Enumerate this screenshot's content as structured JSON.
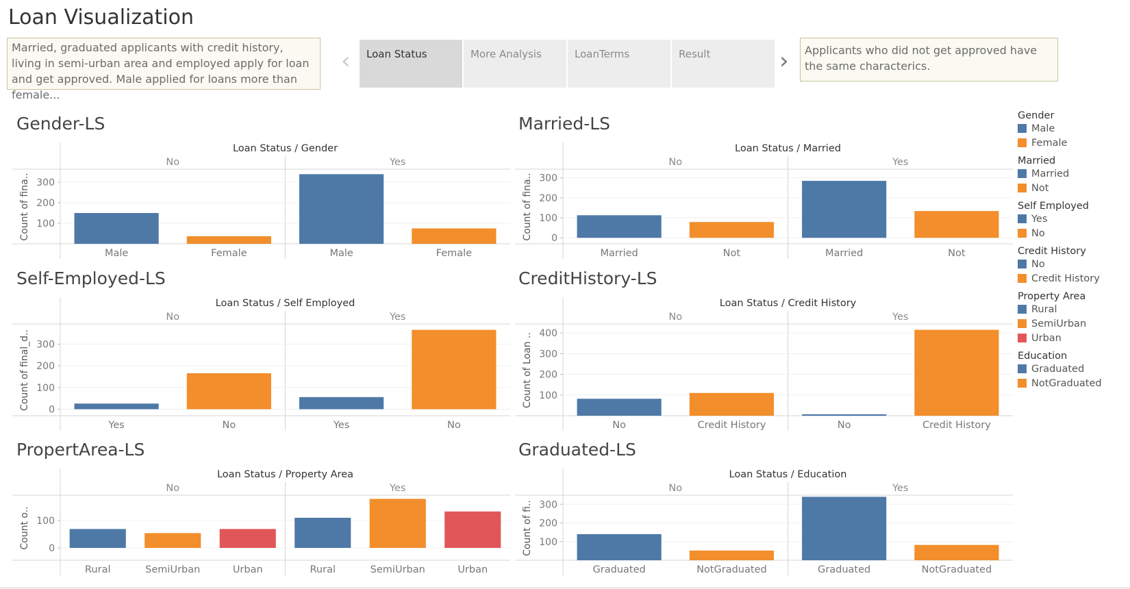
{
  "title": "Loan Visualization",
  "story": {
    "caption_left": "Married, graduated applicants with credit history, living in semi-urban area and employed apply  for loan and get approved. Male applied for loans more than female...",
    "caption_right": "Applicants who did not get approved have the same characterics.",
    "tabs": [
      {
        "label": "Loan Status",
        "active": true
      },
      {
        "label": "More Analysis",
        "active": false
      },
      {
        "label": "LoanTerms",
        "active": false
      },
      {
        "label": "Result",
        "active": false
      }
    ],
    "prev_icon": "chevron-left-icon",
    "next_icon": "chevron-right-icon"
  },
  "colors": {
    "blue": "#4e79a7",
    "orange": "#f28e2b",
    "red": "#e15759"
  },
  "legend": [
    {
      "title": "Gender",
      "items": [
        {
          "label": "Male",
          "color": "#4e79a7"
        },
        {
          "label": "Female",
          "color": "#f28e2b"
        }
      ]
    },
    {
      "title": "Married",
      "items": [
        {
          "label": "Married",
          "color": "#4e79a7"
        },
        {
          "label": "Not",
          "color": "#f28e2b"
        }
      ]
    },
    {
      "title": "Self Employed",
      "items": [
        {
          "label": "Yes",
          "color": "#4e79a7"
        },
        {
          "label": "No",
          "color": "#f28e2b"
        }
      ]
    },
    {
      "title": "Credit History",
      "items": [
        {
          "label": "No",
          "color": "#4e79a7"
        },
        {
          "label": "Credit History",
          "color": "#f28e2b"
        }
      ]
    },
    {
      "title": "Property Area",
      "items": [
        {
          "label": "Rural",
          "color": "#4e79a7"
        },
        {
          "label": "SemiUrban",
          "color": "#f28e2b"
        },
        {
          "label": "Urban",
          "color": "#e15759"
        }
      ]
    },
    {
      "title": "Education",
      "items": [
        {
          "label": "Graduated",
          "color": "#4e79a7"
        },
        {
          "label": "NotGraduated",
          "color": "#f28e2b"
        }
      ]
    }
  ],
  "chart_data": [
    {
      "id": "gender",
      "type": "bar",
      "title": "Gender-LS",
      "header": "Loan Status  /  Gender",
      "ylabel": "Count of fina..",
      "ylim": [
        0,
        360
      ],
      "ticks": [
        100,
        200,
        300
      ],
      "groups": [
        {
          "name": "No",
          "bars": [
            {
              "label": "Male",
              "value": 150,
              "color": "#4e79a7"
            },
            {
              "label": "Female",
              "value": 37,
              "color": "#f28e2b"
            }
          ]
        },
        {
          "name": "Yes",
          "bars": [
            {
              "label": "Male",
              "value": 339,
              "color": "#4e79a7"
            },
            {
              "label": "Female",
              "value": 75,
              "color": "#f28e2b"
            }
          ]
        }
      ]
    },
    {
      "id": "married",
      "type": "bar",
      "title": "Married-LS",
      "header": "Loan Status  /  Married",
      "ylabel": "Count of fina..",
      "ylim": [
        -30,
        340
      ],
      "ticks": [
        0,
        100,
        200,
        300
      ],
      "groups": [
        {
          "name": "No",
          "bars": [
            {
              "label": "Married",
              "value": 113,
              "color": "#4e79a7"
            },
            {
              "label": "Not",
              "value": 79,
              "color": "#f28e2b"
            }
          ]
        },
        {
          "name": "Yes",
          "bars": [
            {
              "label": "Married",
              "value": 285,
              "color": "#4e79a7"
            },
            {
              "label": "Not",
              "value": 134,
              "color": "#f28e2b"
            }
          ]
        }
      ]
    },
    {
      "id": "self-employed",
      "type": "bar",
      "title": "Self-Employed-LS",
      "header": "Loan Status  /  Self Employed",
      "ylabel": "Count of final_d..",
      "ylim": [
        -30,
        390
      ],
      "ticks": [
        0,
        100,
        200,
        300
      ],
      "groups": [
        {
          "name": "No",
          "bars": [
            {
              "label": "Yes",
              "value": 26,
              "color": "#4e79a7"
            },
            {
              "label": "No",
              "value": 166,
              "color": "#f28e2b"
            }
          ]
        },
        {
          "name": "Yes",
          "bars": [
            {
              "label": "Yes",
              "value": 56,
              "color": "#4e79a7"
            },
            {
              "label": "No",
              "value": 366,
              "color": "#f28e2b"
            }
          ]
        }
      ]
    },
    {
      "id": "credit-history",
      "type": "bar",
      "title": "CreditHistory-LS",
      "header": "Loan Status  /  Credit History",
      "ylabel": "Count of Loan ..",
      "ylim": [
        0,
        440
      ],
      "ticks": [
        100,
        200,
        300,
        400
      ],
      "groups": [
        {
          "name": "No",
          "bars": [
            {
              "label": "No",
              "value": 82,
              "color": "#4e79a7"
            },
            {
              "label": "Credit History",
              "value": 110,
              "color": "#f28e2b"
            }
          ]
        },
        {
          "name": "Yes",
          "bars": [
            {
              "label": "No",
              "value": 7,
              "color": "#4e79a7"
            },
            {
              "label": "Credit History",
              "value": 415,
              "color": "#f28e2b"
            }
          ]
        }
      ]
    },
    {
      "id": "property-area",
      "type": "bar",
      "title": "PropertArea-LS",
      "header": "Loan Status  /  Property Area",
      "ylabel": "Count o..",
      "ylim": [
        -45,
        190
      ],
      "ticks": [
        0,
        100
      ],
      "groups": [
        {
          "name": "No",
          "bars": [
            {
              "label": "Rural",
              "value": 69,
              "color": "#4e79a7"
            },
            {
              "label": "SemiUrban",
              "value": 54,
              "color": "#f28e2b"
            },
            {
              "label": "Urban",
              "value": 69,
              "color": "#e15759"
            }
          ]
        },
        {
          "name": "Yes",
          "bars": [
            {
              "label": "Rural",
              "value": 110,
              "color": "#4e79a7"
            },
            {
              "label": "SemiUrban",
              "value": 179,
              "color": "#f28e2b"
            },
            {
              "label": "Urban",
              "value": 133,
              "color": "#e15759"
            }
          ]
        }
      ]
    },
    {
      "id": "education",
      "type": "bar",
      "title": "Graduated-LS",
      "header": "Loan Status  /  Education",
      "ylabel": "Count of fi..",
      "ylim": [
        0,
        345
      ],
      "ticks": [
        100,
        200,
        300
      ],
      "groups": [
        {
          "name": "No",
          "bars": [
            {
              "label": "Graduated",
              "value": 140,
              "color": "#4e79a7"
            },
            {
              "label": "NotGraduated",
              "value": 52,
              "color": "#f28e2b"
            }
          ]
        },
        {
          "name": "Yes",
          "bars": [
            {
              "label": "Graduated",
              "value": 340,
              "color": "#4e79a7"
            },
            {
              "label": "NotGraduated",
              "value": 82,
              "color": "#f28e2b"
            }
          ]
        }
      ]
    }
  ]
}
